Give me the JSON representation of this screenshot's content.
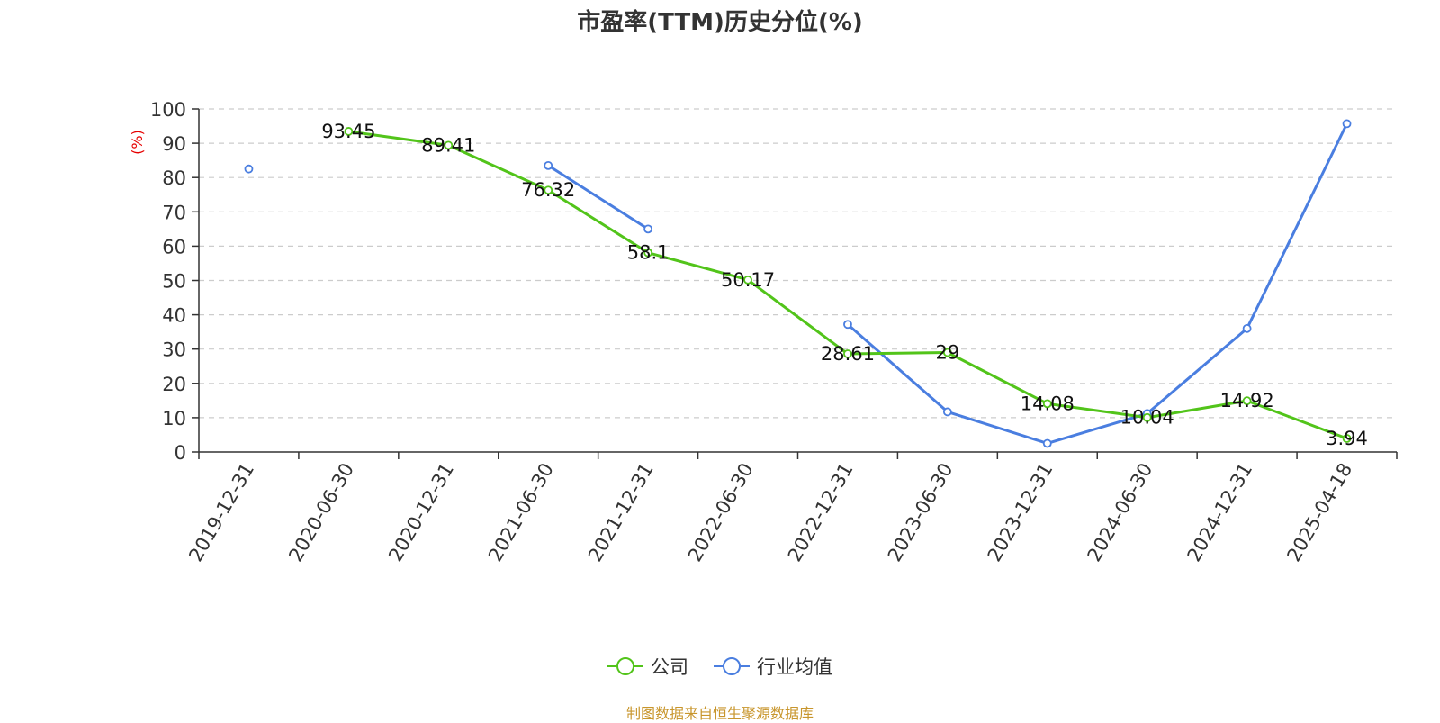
{
  "chart_data": {
    "type": "line",
    "title": "市盈率(TTM)历史分位(%)",
    "ylabel": "(%)",
    "xlabel": "",
    "ylim": [
      0,
      100
    ],
    "yticks": [
      0,
      10,
      20,
      30,
      40,
      50,
      60,
      70,
      80,
      90,
      100
    ],
    "categories": [
      "2019-12-31",
      "2020-06-30",
      "2020-12-31",
      "2021-06-30",
      "2021-12-31",
      "2022-06-30",
      "2022-12-31",
      "2023-06-30",
      "2023-12-31",
      "2024-06-30",
      "2024-12-31",
      "2025-04-18"
    ],
    "grid": "horizontal-dashed",
    "legend_position": "bottom-center",
    "series": [
      {
        "name": "公司",
        "color": "#52c41a",
        "show_labels": true,
        "values": [
          null,
          93.45,
          89.41,
          76.32,
          58.1,
          50.17,
          28.61,
          29,
          14.08,
          10.04,
          14.92,
          3.94
        ]
      },
      {
        "name": "行业均值",
        "color": "#4a7ee0",
        "show_labels": false,
        "values": [
          82.5,
          null,
          null,
          83.5,
          65,
          null,
          37.2,
          11.7,
          2.5,
          11.2,
          36,
          95.7
        ]
      }
    ]
  },
  "source": "制图数据来自恒生聚源数据库"
}
